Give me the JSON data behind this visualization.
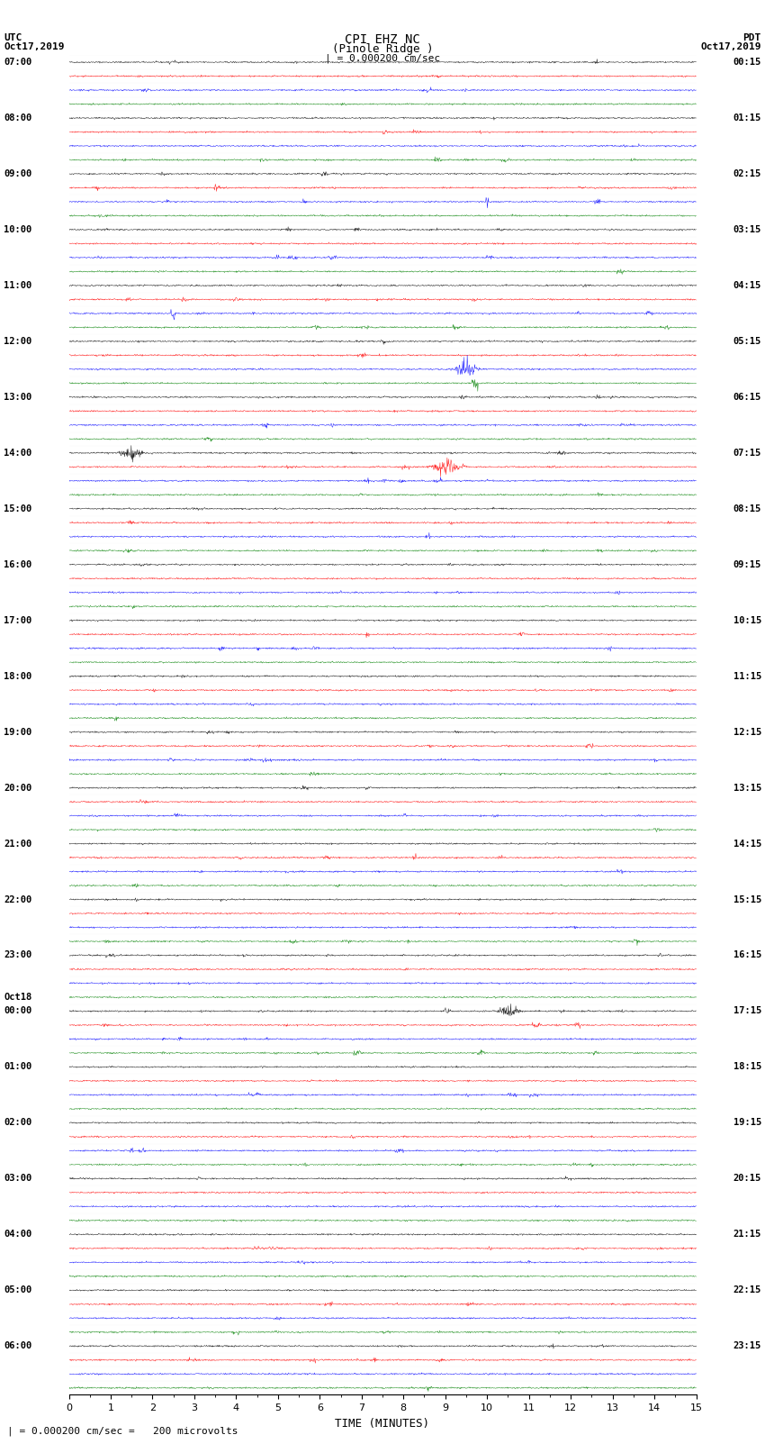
{
  "title_line1": "CPI EHZ NC",
  "title_line2": "(Pinole Ridge )",
  "scale_label": "| = 0.000200 cm/sec",
  "footer_label": "| = 0.000200 cm/sec =   200 microvolts",
  "xlabel": "TIME (MINUTES)",
  "utc_label": "UTC",
  "utc_date": "Oct17,2019",
  "pdt_label": "PDT",
  "pdt_date": "Oct17,2019",
  "left_times": [
    "07:00",
    "08:00",
    "09:00",
    "10:00",
    "11:00",
    "12:00",
    "13:00",
    "14:00",
    "15:00",
    "16:00",
    "17:00",
    "18:00",
    "19:00",
    "20:00",
    "21:00",
    "22:00",
    "23:00",
    "00:00",
    "01:00",
    "02:00",
    "03:00",
    "04:00",
    "05:00",
    "06:00"
  ],
  "oct18_group_idx": 17,
  "right_times": [
    "00:15",
    "01:15",
    "02:15",
    "03:15",
    "04:15",
    "05:15",
    "06:15",
    "07:15",
    "08:15",
    "09:15",
    "10:15",
    "11:15",
    "12:15",
    "13:15",
    "14:15",
    "15:15",
    "16:15",
    "17:15",
    "18:15",
    "19:15",
    "20:15",
    "21:15",
    "22:15",
    "23:15"
  ],
  "num_rows": 96,
  "colors": [
    "black",
    "red",
    "blue",
    "green"
  ],
  "bg_color": "white",
  "xlim": [
    0,
    15
  ],
  "noise_base": 0.055,
  "figsize": [
    8.5,
    16.13
  ],
  "dpi": 100
}
